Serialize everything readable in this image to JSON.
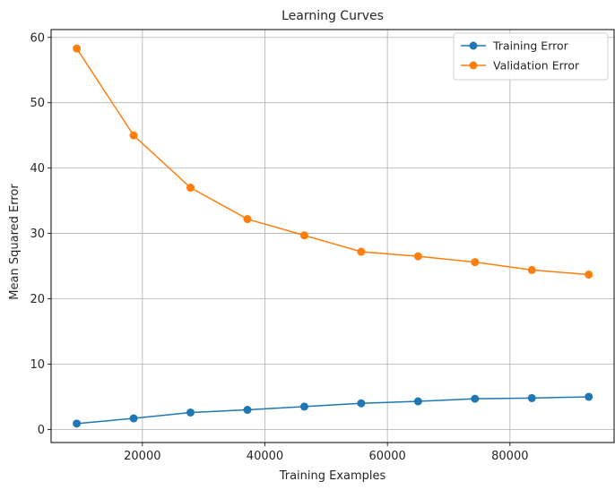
{
  "chart_data": {
    "type": "line",
    "title": "Learning Curves",
    "xlabel": "Training Examples",
    "ylabel": "Mean Squared Error",
    "x": [
      9286,
      18572,
      27858,
      37144,
      46430,
      55716,
      65002,
      74288,
      83574,
      92860
    ],
    "series": [
      {
        "name": "Training Error",
        "color": "#1f77b4",
        "values": [
          0.9,
          1.7,
          2.6,
          3.0,
          3.5,
          4.0,
          4.3,
          4.7,
          4.8,
          5.0
        ]
      },
      {
        "name": "Validation Error",
        "color": "#ff7f0e",
        "values": [
          58.3,
          45.0,
          37.0,
          32.2,
          29.7,
          27.2,
          26.5,
          25.6,
          24.4,
          23.7
        ]
      }
    ],
    "xlim": [
      5100,
      97000
    ],
    "ylim": [
      -2.0,
      61.2
    ],
    "xticks": [
      20000,
      40000,
      60000,
      80000
    ],
    "yticks": [
      0,
      10,
      20,
      30,
      40,
      50,
      60
    ],
    "grid": true,
    "legend_position": "upper-right"
  }
}
